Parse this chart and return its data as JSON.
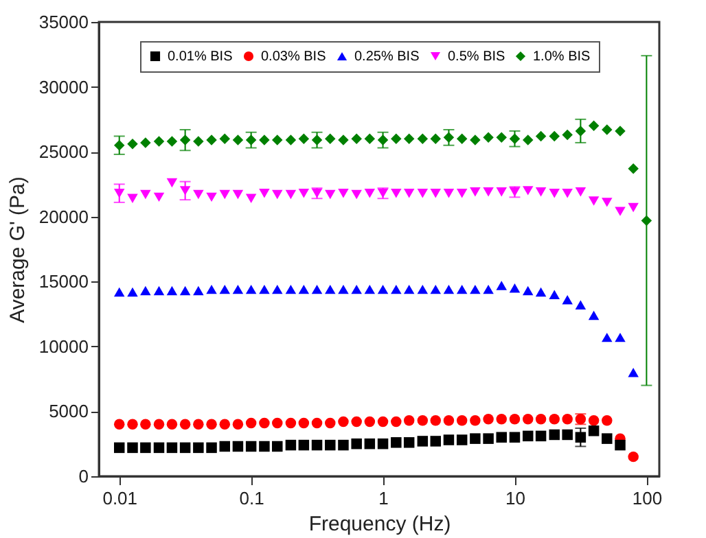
{
  "chart_data": {
    "type": "scatter",
    "xlabel": "Frequency (Hz)",
    "ylabel": "Average G' (Pa)",
    "log": "x",
    "xlim": [
      0.007,
      125
    ],
    "xticks": [
      0.01,
      0.1,
      1,
      10,
      100
    ],
    "ylim": [
      0,
      35000
    ],
    "yticks": [
      0,
      5000,
      10000,
      15000,
      20000,
      25000,
      30000,
      35000
    ],
    "grid": false,
    "legend": "top",
    "series": [
      {
        "name": "0.01% BIS",
        "color": "#000000",
        "marker": "square",
        "x": [
          0.01,
          0.0126,
          0.0158,
          0.02,
          0.0251,
          0.0316,
          0.0398,
          0.0501,
          0.0631,
          0.0794,
          0.1,
          0.126,
          0.158,
          0.2,
          0.251,
          0.316,
          0.398,
          0.501,
          0.631,
          0.794,
          1,
          1.26,
          1.58,
          2,
          2.51,
          3.16,
          3.98,
          5.01,
          6.31,
          7.94,
          10,
          12.6,
          15.8,
          20,
          25.1,
          31.6,
          39.8,
          50.1,
          63.1
        ],
        "values": [
          2200,
          2200,
          2200,
          2200,
          2200,
          2200,
          2200,
          2200,
          2300,
          2300,
          2300,
          2300,
          2300,
          2400,
          2400,
          2400,
          2400,
          2400,
          2500,
          2500,
          2500,
          2600,
          2600,
          2700,
          2700,
          2800,
          2800,
          2900,
          2900,
          3000,
          3000,
          3100,
          3100,
          3200,
          3200,
          3000,
          3500,
          2900,
          2400
        ],
        "errors": [
          null,
          null,
          null,
          null,
          null,
          null,
          null,
          null,
          null,
          null,
          null,
          null,
          null,
          null,
          null,
          null,
          null,
          null,
          null,
          null,
          null,
          null,
          null,
          null,
          null,
          null,
          null,
          null,
          null,
          null,
          null,
          null,
          null,
          null,
          null,
          700,
          null,
          null,
          null
        ]
      },
      {
        "name": "0.03% BIS",
        "color": "#ff0000",
        "marker": "circle",
        "x": [
          0.01,
          0.0126,
          0.0158,
          0.02,
          0.0251,
          0.0316,
          0.0398,
          0.0501,
          0.0631,
          0.0794,
          0.1,
          0.126,
          0.158,
          0.2,
          0.251,
          0.316,
          0.398,
          0.501,
          0.631,
          0.794,
          1,
          1.26,
          1.58,
          2,
          2.51,
          3.16,
          3.98,
          5.01,
          6.31,
          7.94,
          10,
          12.6,
          15.8,
          20,
          25.1,
          31.6,
          39.8,
          50.1,
          63.1,
          79.4
        ],
        "values": [
          4000,
          4000,
          4000,
          4000,
          4000,
          4000,
          4000,
          4000,
          4000,
          4000,
          4100,
          4100,
          4100,
          4100,
          4100,
          4100,
          4100,
          4200,
          4200,
          4200,
          4200,
          4200,
          4300,
          4300,
          4300,
          4300,
          4300,
          4300,
          4400,
          4400,
          4400,
          4400,
          4400,
          4400,
          4400,
          4400,
          4300,
          4300,
          2900,
          1500
        ],
        "errors": [
          null,
          null,
          null,
          null,
          null,
          null,
          null,
          null,
          null,
          null,
          null,
          null,
          null,
          null,
          null,
          null,
          null,
          null,
          null,
          null,
          null,
          null,
          null,
          null,
          null,
          null,
          null,
          null,
          null,
          null,
          null,
          null,
          null,
          null,
          null,
          400,
          null,
          null,
          null,
          null
        ]
      },
      {
        "name": "0.25% BIS",
        "color": "#0000ff",
        "marker": "triangle-up",
        "x": [
          0.01,
          0.0126,
          0.0158,
          0.02,
          0.0251,
          0.0316,
          0.0398,
          0.0501,
          0.0631,
          0.0794,
          0.1,
          0.126,
          0.158,
          0.2,
          0.251,
          0.316,
          0.398,
          0.501,
          0.631,
          0.794,
          1,
          1.26,
          1.58,
          2,
          2.51,
          3.16,
          3.98,
          5.01,
          6.31,
          7.94,
          10,
          12.6,
          15.8,
          20,
          25.1,
          31.6,
          39.8,
          50.1,
          63.1,
          79.4
        ],
        "values": [
          14200,
          14200,
          14300,
          14300,
          14300,
          14300,
          14300,
          14400,
          14400,
          14400,
          14400,
          14400,
          14400,
          14400,
          14400,
          14400,
          14400,
          14400,
          14400,
          14400,
          14400,
          14400,
          14400,
          14400,
          14400,
          14400,
          14400,
          14400,
          14400,
          14700,
          14500,
          14300,
          14200,
          14000,
          13600,
          13200,
          12400,
          10700,
          10700,
          8000
        ]
      },
      {
        "name": "0.5% BIS",
        "color": "#ff00ff",
        "marker": "triangle-down",
        "x": [
          0.01,
          0.0126,
          0.0158,
          0.02,
          0.0251,
          0.0316,
          0.0398,
          0.0501,
          0.0631,
          0.0794,
          0.1,
          0.126,
          0.158,
          0.2,
          0.251,
          0.316,
          0.398,
          0.501,
          0.631,
          0.794,
          1,
          1.26,
          1.58,
          2,
          2.51,
          3.16,
          3.98,
          5.01,
          6.31,
          7.94,
          10,
          12.6,
          15.8,
          20,
          25.1,
          31.6,
          39.8,
          50.1,
          63.1,
          79.4
        ],
        "values": [
          21800,
          21400,
          21700,
          21500,
          22600,
          22000,
          21700,
          21500,
          21700,
          21700,
          21400,
          21800,
          21700,
          21700,
          21800,
          21800,
          21700,
          21800,
          21700,
          21800,
          21800,
          21800,
          21800,
          21800,
          21800,
          21800,
          21800,
          21900,
          21900,
          21900,
          21900,
          22000,
          21900,
          21800,
          21800,
          21900,
          21200,
          21100,
          20400,
          20700
        ],
        "errors": [
          700,
          null,
          null,
          null,
          null,
          700,
          null,
          null,
          null,
          null,
          null,
          null,
          null,
          null,
          null,
          400,
          null,
          null,
          null,
          null,
          400,
          null,
          null,
          null,
          null,
          null,
          null,
          null,
          null,
          null,
          400,
          null,
          null,
          null,
          null,
          null,
          null,
          null,
          null,
          null
        ]
      },
      {
        "name": "1.0% BIS",
        "color": "#008000",
        "marker": "diamond",
        "x": [
          0.01,
          0.0126,
          0.0158,
          0.02,
          0.0251,
          0.0316,
          0.0398,
          0.0501,
          0.0631,
          0.0794,
          0.1,
          0.126,
          0.158,
          0.2,
          0.251,
          0.316,
          0.398,
          0.501,
          0.631,
          0.794,
          1,
          1.26,
          1.58,
          2,
          2.51,
          3.16,
          3.98,
          5.01,
          6.31,
          7.94,
          10,
          12.6,
          15.8,
          20,
          25.1,
          31.6,
          39.8,
          50.1,
          63.1,
          79.4,
          100
        ],
        "values": [
          25500,
          25600,
          25700,
          25800,
          25800,
          25900,
          25800,
          25900,
          26000,
          25900,
          25900,
          25900,
          25900,
          25900,
          26000,
          25900,
          26000,
          25900,
          26000,
          26000,
          25900,
          26000,
          26000,
          26000,
          26000,
          26100,
          26000,
          25900,
          26100,
          26100,
          26000,
          25900,
          26200,
          26200,
          26300,
          26600,
          27000,
          26700,
          26600,
          23700,
          19700
        ],
        "errors": [
          700,
          null,
          null,
          null,
          null,
          800,
          null,
          null,
          null,
          null,
          600,
          null,
          null,
          null,
          null,
          600,
          null,
          null,
          null,
          null,
          600,
          null,
          null,
          null,
          null,
          600,
          null,
          null,
          null,
          null,
          600,
          null,
          null,
          null,
          null,
          900,
          null,
          null,
          null,
          null,
          [
            7000,
            32400
          ]
        ]
      }
    ]
  }
}
